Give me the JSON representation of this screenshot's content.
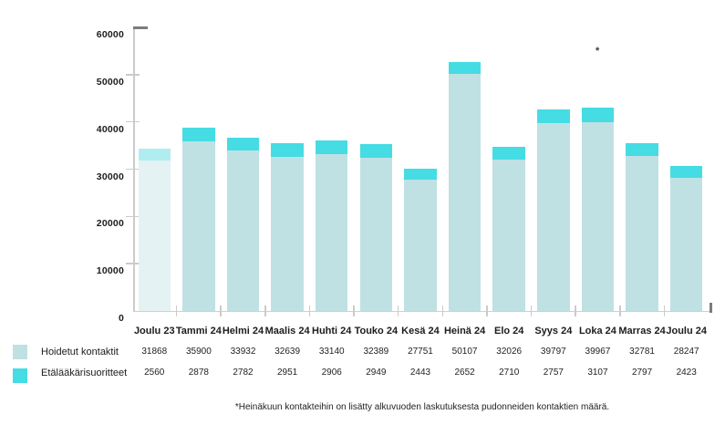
{
  "page": {
    "footnote": "*Heinäkuun kontakteihin on lisätty alkuvuoden laskutuksesta pudonneiden kontaktien määrä.",
    "annotation_mark": "*"
  },
  "chart_data": {
    "type": "bar",
    "stacked": true,
    "title": "",
    "categories": [
      "Joulu 23",
      "Tammi 24",
      "Helmi 24",
      "Maalis 24",
      "Huhti 24",
      "Touko 24",
      "Kesä 24",
      "Heinä 24",
      "Elo 24",
      "Syys 24",
      "Loka 24",
      "Marras 24",
      "Joulu 24"
    ],
    "series": [
      {
        "name": "Hoidetut kontaktit",
        "values": [
          31868,
          35900,
          33932,
          32639,
          33140,
          32389,
          27751,
          50107,
          32026,
          39797,
          39967,
          32781,
          28247
        ],
        "color": "#bfe1e3",
        "first_category_color": "#e4f2f3"
      },
      {
        "name": "Etälääkärisuoritteet",
        "values": [
          2560,
          2878,
          2782,
          2951,
          2906,
          2949,
          2443,
          2652,
          2710,
          2757,
          3107,
          2797,
          2423
        ],
        "color": "#45dce3",
        "first_category_color": "#b0edf1"
      }
    ],
    "ylim": [
      0,
      60000
    ],
    "yticks": [
      0,
      10000,
      20000,
      30000,
      40000,
      50000,
      60000
    ],
    "grid": false,
    "legend_position": "bottom-left"
  }
}
